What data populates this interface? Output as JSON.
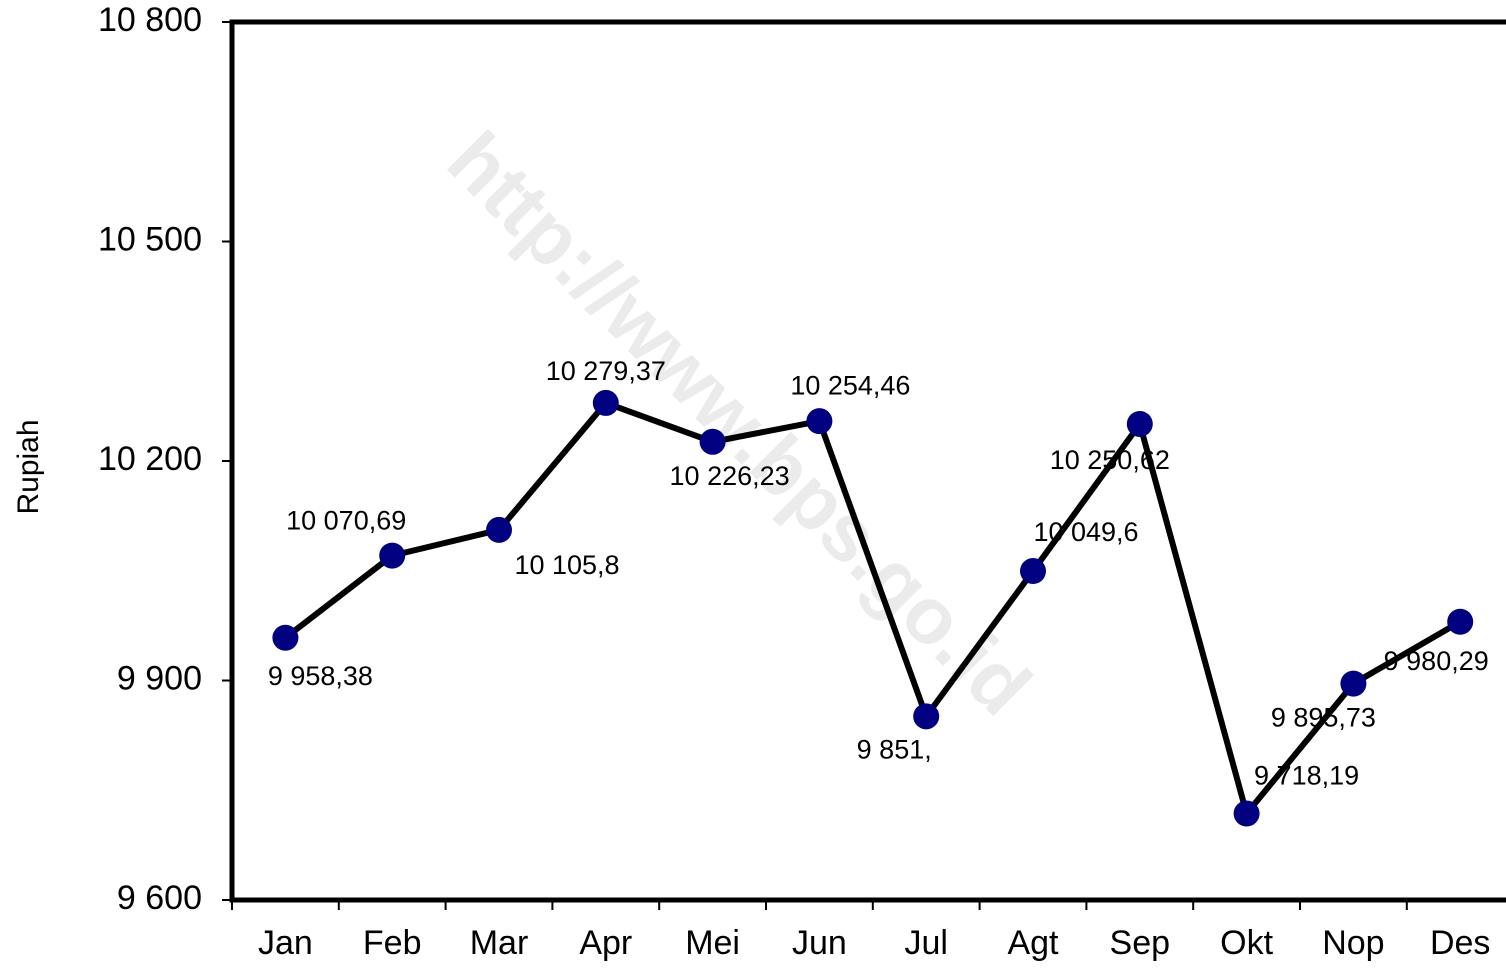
{
  "chart_data": {
    "type": "line",
    "y_label": "Rupiah",
    "watermark": "http://www.bps.go.id",
    "categories": [
      "Jan",
      "Feb",
      "Mar",
      "Apr",
      "Mei",
      "Jun",
      "Jul",
      "Agt",
      "Sep",
      "Okt",
      "Nop",
      "Des"
    ],
    "series": [
      {
        "color": "#000000",
        "marker_color": "#000080",
        "values": [
          9958.38,
          10070.69,
          10105.8,
          10279.37,
          10226.23,
          10254.46,
          9851,
          10049.6,
          10250.62,
          9718.19,
          9895.73,
          9980.29
        ],
        "value_labels": [
          "9 958,38",
          "10 070,69",
          "10 105,8",
          "10 279,37",
          "10 226,23",
          "10 254,46",
          "9 851,",
          "10 049,6",
          "10 250,62",
          "9 718,19",
          "9 895,73",
          "9 980,29"
        ]
      }
    ],
    "ylim": [
      9600,
      10800
    ],
    "yticks": [
      {
        "value": 9600,
        "label": "9 600"
      },
      {
        "value": 9900,
        "label": "9 900"
      },
      {
        "value": 10200,
        "label": "10 200"
      },
      {
        "value": 10500,
        "label": "10 500"
      },
      {
        "value": 10800,
        "label": "10 800"
      }
    ],
    "grid": false
  }
}
